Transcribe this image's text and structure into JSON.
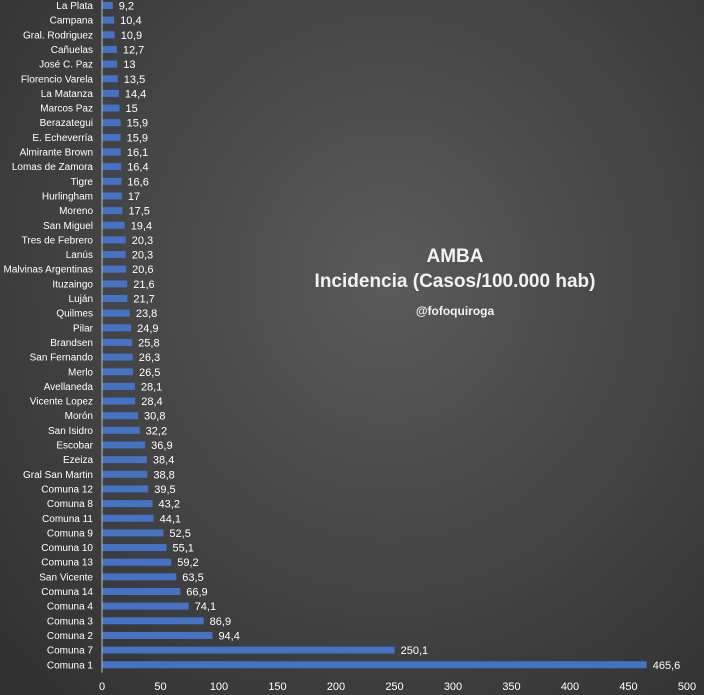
{
  "chart_data": {
    "type": "bar",
    "orientation": "horizontal",
    "title": "AMBA",
    "subtitle": "Incidencia (Casos/100.000 hab)",
    "credit": "@fofoquiroga",
    "xlim": [
      0,
      500
    ],
    "x_ticks": [
      "0",
      "50",
      "100",
      "150",
      "200",
      "250",
      "300",
      "350",
      "400",
      "450",
      "500"
    ],
    "bar_color": "#4472c4",
    "grid": false,
    "categories": [
      "La Plata",
      "Campana",
      "Gral. Rodriguez",
      "Cañuelas",
      "José C. Paz",
      "Florencio Varela",
      "La Matanza",
      "Marcos Paz",
      "Berazategui",
      "E. Echeverría",
      "Almirante Brown",
      "Lomas de Zamora",
      "Tigre",
      "Hurlingham",
      "Moreno",
      "San Miguel",
      "Tres de Febrero",
      "Lanús",
      "Malvinas Argentinas",
      "Ituzaingo",
      "Luján",
      "Quilmes",
      "Pilar",
      "Brandsen",
      "San Fernando",
      "Merlo",
      "Avellaneda",
      "Vicente Lopez",
      "Morón",
      "San Isidro",
      "Escobar",
      "Ezeiza",
      "Gral San Martin",
      "Comuna 12",
      "Comuna 8",
      "Comuna 11",
      "Comuna 9",
      "Comuna 10",
      "Comuna 13",
      "San Vicente",
      "Comuna 14",
      "Comuna 4",
      "Comuna 3",
      "Comuna 2",
      "Comuna 7",
      "Comuna 1"
    ],
    "values": [
      9.2,
      10.4,
      10.9,
      12.7,
      13,
      13.5,
      14.4,
      15,
      15.9,
      15.9,
      16.1,
      16.4,
      16.6,
      17,
      17.5,
      19.4,
      20.3,
      20.3,
      20.6,
      21.6,
      21.7,
      23.8,
      24.9,
      25.8,
      26.3,
      26.5,
      28.1,
      28.4,
      30.8,
      32.2,
      36.9,
      38.4,
      38.8,
      39.5,
      43.2,
      44.1,
      52.5,
      55.1,
      59.2,
      63.5,
      66.9,
      74.1,
      86.9,
      94.4,
      250.1,
      465.6
    ],
    "value_labels": [
      "9,2",
      "10,4",
      "10,9",
      "12,7",
      "13",
      "13,5",
      "14,4",
      "15",
      "15,9",
      "15,9",
      "16,1",
      "16,4",
      "16,6",
      "17",
      "17,5",
      "19,4",
      "20,3",
      "20,3",
      "20,6",
      "21,6",
      "21,7",
      "23,8",
      "24,9",
      "25,8",
      "26,3",
      "26,5",
      "28,1",
      "28,4",
      "30,8",
      "32,2",
      "36,9",
      "38,4",
      "38,8",
      "39,5",
      "43,2",
      "44,1",
      "52,5",
      "55,1",
      "59,2",
      "63,5",
      "66,9",
      "74,1",
      "86,9",
      "94,4",
      "250,1",
      "465,6"
    ]
  }
}
